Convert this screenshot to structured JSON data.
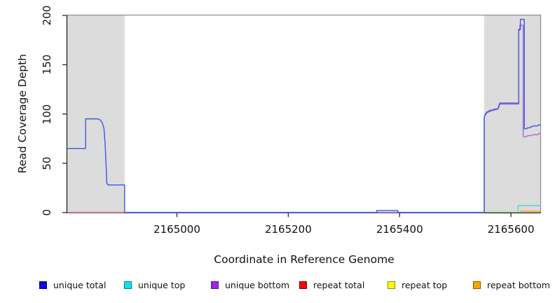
{
  "chart_data": {
    "type": "line",
    "title": "",
    "xlabel": "Coordinate in Reference Genome",
    "ylabel": "Read Coverage Depth",
    "xlim": [
      2164803,
      2165654
    ],
    "ylim": [
      0,
      200
    ],
    "grid": false,
    "xticks": [
      {
        "value": 2165000,
        "label": "2165000"
      },
      {
        "value": 2165200,
        "label": "2165200"
      },
      {
        "value": 2165400,
        "label": "2165400"
      },
      {
        "value": 2165600,
        "label": "2165600"
      }
    ],
    "yticks": [
      {
        "value": 0,
        "label": "0"
      },
      {
        "value": 50,
        "label": "50"
      },
      {
        "value": 100,
        "label": "100"
      },
      {
        "value": 150,
        "label": "150"
      },
      {
        "value": 200,
        "label": "200"
      }
    ],
    "shaded_regions": {
      "color": "#dcdcdc",
      "ranges": [
        {
          "name": "repeat-region-left",
          "from": 2164803,
          "to": 2164906
        },
        {
          "name": "repeat-region-right",
          "from": 2165552,
          "to": 2165654
        }
      ]
    },
    "series": [
      {
        "name": "repeat top",
        "color": "#ffff00",
        "render_color": "#9fd89f",
        "segments": [
          [
            [
              2165359,
              0.5
            ],
            [
              2165397,
              0.5
            ]
          ],
          [
            [
              2165552,
              0.5
            ],
            [
              2165614,
              0.5
            ]
          ]
        ]
      },
      {
        "name": "unique bottom",
        "color": "#a020f0",
        "render_color": "#a767d8",
        "segments": [
          [
            [
              2164803,
              0
            ],
            [
              2165552,
              0
            ],
            [
              2165552,
              96
            ],
            [
              2165554,
              99
            ],
            [
              2165557,
              101
            ],
            [
              2165560,
              102
            ],
            [
              2165564,
              103
            ],
            [
              2165570,
              104
            ],
            [
              2165577,
              105
            ],
            [
              2165580,
              110
            ],
            [
              2165614,
              110
            ],
            [
              2165614,
              185
            ],
            [
              2165616,
              185
            ],
            [
              2165616,
              190
            ],
            [
              2165622,
              190
            ],
            [
              2165622,
              77
            ],
            [
              2165628,
              77
            ],
            [
              2165630,
              78
            ],
            [
              2165636,
              78
            ],
            [
              2165640,
              79
            ],
            [
              2165648,
              79
            ],
            [
              2165650,
              80
            ],
            [
              2165654,
              80
            ]
          ]
        ]
      },
      {
        "name": "repeat total",
        "color": "#ff0000",
        "render_color": "#f28b8b",
        "segments": [
          [
            [
              2164803,
              0.3
            ],
            [
              2164906,
              0.3
            ]
          ]
        ]
      },
      {
        "name": "unique total",
        "color": "#0000ff",
        "render_color": "#4156e2",
        "segments": [
          [
            [
              2164803,
              65
            ],
            [
              2164836,
              65
            ],
            [
              2164836,
              95
            ],
            [
              2164858,
              95
            ],
            [
              2164862,
              94
            ],
            [
              2164866,
              91
            ],
            [
              2164869,
              85
            ],
            [
              2164871,
              70
            ],
            [
              2164873,
              45
            ],
            [
              2164874,
              30
            ],
            [
              2164876,
              28
            ],
            [
              2164906,
              28
            ],
            [
              2164906,
              0
            ],
            [
              2165359,
              0
            ],
            [
              2165359,
              2
            ],
            [
              2165397,
              2
            ],
            [
              2165397,
              0
            ],
            [
              2165552,
              0
            ],
            [
              2165552,
              97
            ],
            [
              2165554,
              100
            ],
            [
              2165557,
              102
            ],
            [
              2165560,
              103
            ],
            [
              2165564,
              104
            ],
            [
              2165568,
              104
            ],
            [
              2165570,
              105
            ],
            [
              2165575,
              105
            ],
            [
              2165577,
              106
            ],
            [
              2165580,
              111
            ],
            [
              2165614,
              111
            ],
            [
              2165614,
              186
            ],
            [
              2165617,
              186
            ],
            [
              2165617,
              196
            ],
            [
              2165624,
              196
            ],
            [
              2165624,
              85
            ],
            [
              2165628,
              85
            ],
            [
              2165630,
              86
            ],
            [
              2165634,
              86
            ],
            [
              2165636,
              87
            ],
            [
              2165642,
              88
            ],
            [
              2165648,
              88
            ],
            [
              2165650,
              89
            ],
            [
              2165654,
              89
            ]
          ]
        ]
      },
      {
        "name": "unique top",
        "color": "#00e5ee",
        "render_color": "#2edce6",
        "segments": [
          [
            [
              2165613,
              0
            ],
            [
              2165613,
              7
            ],
            [
              2165654,
              7
            ]
          ]
        ]
      },
      {
        "name": "repeat bottom",
        "color": "#ffa500",
        "render_color": "#ff9d00",
        "segments": [
          [
            [
              2165616,
              1.3
            ],
            [
              2165654,
              1.3
            ]
          ]
        ]
      }
    ],
    "legend": {
      "position": "bottom",
      "items": [
        {
          "label": "unique total",
          "fill": "#0a0ae6",
          "border": "#000080"
        },
        {
          "label": "unique top",
          "fill": "#00e5ee",
          "border": "#00868b"
        },
        {
          "label": "unique bottom",
          "fill": "#a020f0",
          "border": "#551a8b"
        },
        {
          "label": "repeat total",
          "fill": "#ff0000",
          "border": "#8b0000"
        },
        {
          "label": "repeat top",
          "fill": "#ffff00",
          "border": "#8b8b00"
        },
        {
          "label": "repeat bottom",
          "fill": "#ffa500",
          "border": "#8b5a00"
        }
      ]
    }
  }
}
